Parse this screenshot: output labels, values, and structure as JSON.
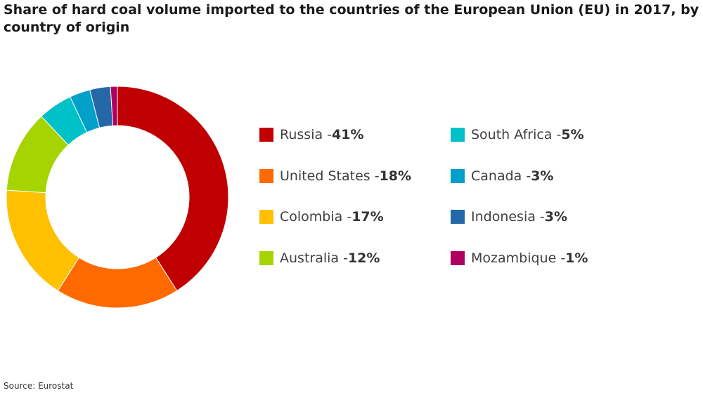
{
  "title": "Share of hard coal volume imported to the countries of the European Union (EU) in 2017, by country of origin",
  "source": "Source: Eurostat",
  "chart_data": {
    "type": "pie",
    "variant": "donut",
    "title": "Share of hard coal volume imported to the countries of the European Union (EU) in 2017, by country of origin",
    "unit": "%",
    "categories": [
      "Russia",
      "United States",
      "Colombia",
      "Australia",
      "South Africa",
      "Canada",
      "Indonesia",
      "Mozambique"
    ],
    "values": [
      41,
      18,
      17,
      12,
      5,
      3,
      3,
      1
    ],
    "value_labels": [
      "41%",
      "18%",
      "17%",
      "12%",
      "5%",
      "3%",
      "3%",
      "1%"
    ],
    "colors": [
      "#c00000",
      "#ff6a00",
      "#ffc000",
      "#a5d400",
      "#00c0c8",
      "#00a0c8",
      "#2468a8",
      "#b0005f"
    ],
    "legend_position": "right",
    "start_angle": "top",
    "direction": "clockwise"
  }
}
